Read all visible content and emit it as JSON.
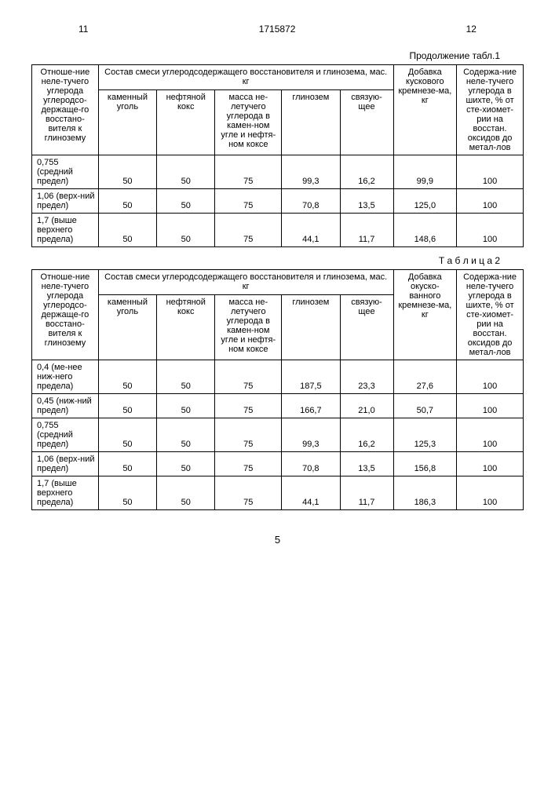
{
  "header": {
    "page_left": "11",
    "doc_num": "1715872",
    "page_right": "12"
  },
  "table1": {
    "caption": "Продолжение табл.1",
    "col_ratio": "Отноше-ние неле-тучего углерода углеродсо-держаще-го восстано-вителя к глинозему",
    "col_span": "Состав смеси углеродсодержащего восстановителя и глинозема, мас. кг",
    "col_coal": "каменный уголь",
    "col_coke": "нефтяной кокс",
    "col_mass": "масса не-летучего углерода в камен-ном угле и нефтя-ном коксе",
    "col_alumina": "глинозем",
    "col_binder": "связую-щее",
    "col_additive": "Добавка кускового кремнезе-ма, кг",
    "col_content": "Содержа-ние неле-тучего углерода в шихте, % от сте-хиомет-рии на восстан. оксидов до метал-лов",
    "rows": [
      {
        "label": "0,755 (средний предел)",
        "coal": "50",
        "coke": "50",
        "mass": "75",
        "alumina": "99,3",
        "binder": "16,2",
        "additive": "99,9",
        "content": "100"
      },
      {
        "label": "1,06 (верх-ний предел)",
        "coal": "50",
        "coke": "50",
        "mass": "75",
        "alumina": "70,8",
        "binder": "13,5",
        "additive": "125,0",
        "content": "100"
      },
      {
        "label": "1,7 (выше верхнего предела)",
        "coal": "50",
        "coke": "50",
        "mass": "75",
        "alumina": "44,1",
        "binder": "11,7",
        "additive": "148,6",
        "content": "100"
      }
    ]
  },
  "table2": {
    "caption": "Т а б л и ц а 2",
    "col_ratio": "Отноше-ние неле-тучего углерода углеродсо-держаще-го восстано-вителя к глинозему",
    "col_span": "Состав смеси углеродсодержащего восстановителя и глинозема, мас. кг",
    "col_coal": "каменный уголь",
    "col_coke": "нефтяной кокс",
    "col_mass": "масса не-летучего углерода в камен-ном угле и нефтя-ном коксе",
    "col_alumina": "глинозем",
    "col_binder": "связую-щее",
    "col_additive": "Добавка окуско-ванного кремнезе-ма, кг",
    "col_content": "Содержа-ние неле-тучего углерода в шихте, % от сте-хиомет-рии на восстан. оксидов до метал-лов",
    "rows": [
      {
        "label": "0,4 (ме-нее ниж-него предела)",
        "coal": "50",
        "coke": "50",
        "mass": "75",
        "alumina": "187,5",
        "binder": "23,3",
        "additive": "27,6",
        "content": "100"
      },
      {
        "label": "0,45 (ниж-ний предел)",
        "coal": "50",
        "coke": "50",
        "mass": "75",
        "alumina": "166,7",
        "binder": "21,0",
        "additive": "50,7",
        "content": "100"
      },
      {
        "label": "0,755 (средний предел)",
        "coal": "50",
        "coke": "50",
        "mass": "75",
        "alumina": "99,3",
        "binder": "16,2",
        "additive": "125,3",
        "content": "100"
      },
      {
        "label": "1,06 (верх-ний предел)",
        "coal": "50",
        "coke": "50",
        "mass": "75",
        "alumina": "70,8",
        "binder": "13,5",
        "additive": "156,8",
        "content": "100"
      },
      {
        "label": "1,7 (выше верхнего предела)",
        "coal": "50",
        "coke": "50",
        "mass": "75",
        "alumina": "44,1",
        "binder": "11,7",
        "additive": "186,3",
        "content": "100"
      }
    ]
  },
  "footer_page": "5"
}
